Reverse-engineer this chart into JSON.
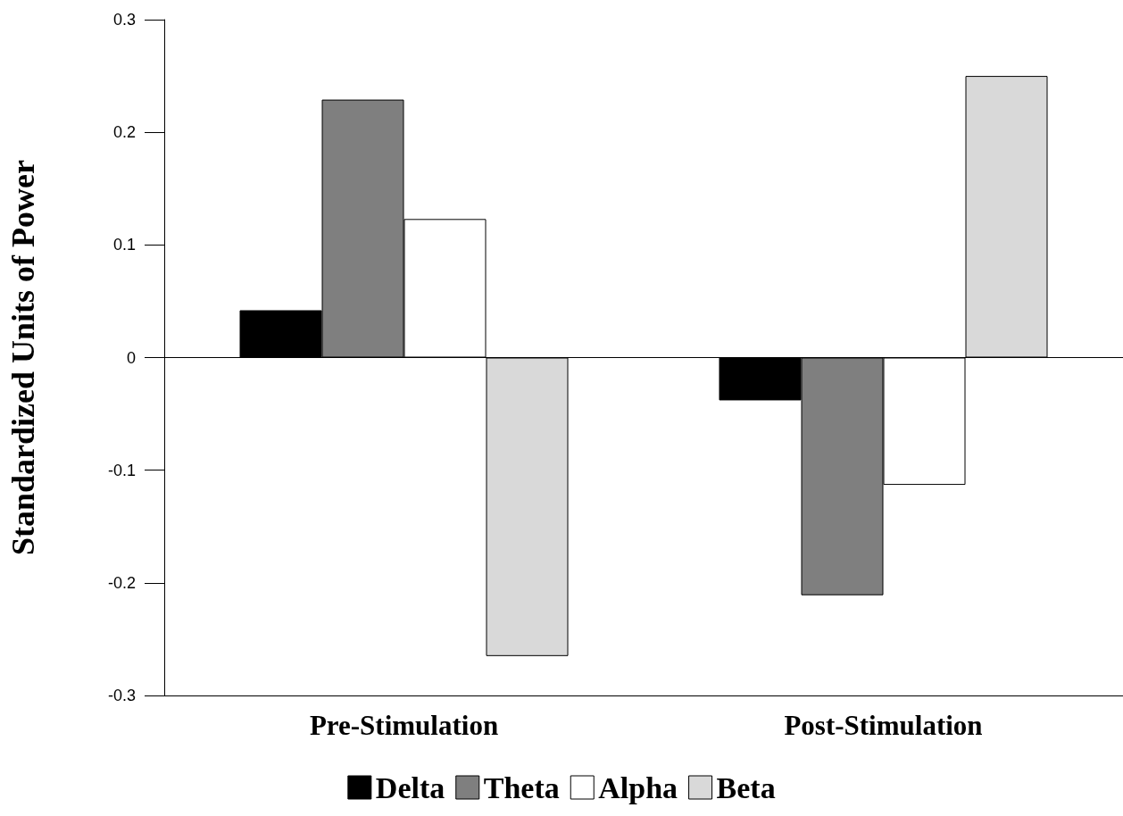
{
  "chart_data": {
    "type": "bar",
    "ylabel": "Standardized Units of Power",
    "categories": [
      "Pre-Stimulation",
      "Post-Stimulation"
    ],
    "series": [
      {
        "name": "Delta",
        "color": "#000000",
        "values": [
          0.042,
          -0.038
        ]
      },
      {
        "name": "Theta",
        "color": "#7f7f7f",
        "values": [
          0.229,
          -0.211
        ]
      },
      {
        "name": "Alpha",
        "color": "#ffffff",
        "values": [
          0.123,
          -0.113
        ]
      },
      {
        "name": "Beta",
        "color": "#d9d9d9",
        "values": [
          -0.265,
          0.25
        ]
      }
    ],
    "ylim": [
      -0.3,
      0.3
    ],
    "yticks": [
      -0.3,
      -0.2,
      -0.1,
      0,
      0.1,
      0.2,
      0.3
    ],
    "ref_lines": [
      {
        "axis": "y",
        "value": 0,
        "color": "#000000"
      }
    ],
    "grid": false,
    "legend": "bottom"
  }
}
